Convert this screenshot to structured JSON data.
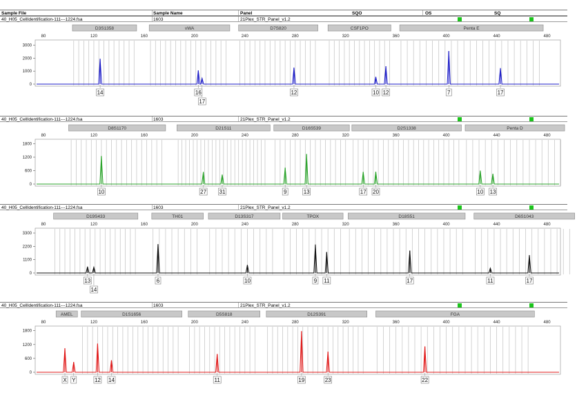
{
  "header": {
    "col_sample_file": "Sample File",
    "col_sample_name": "Sample Name",
    "col_panel": "Panel",
    "col_sqo": "SQO",
    "col_os": "OS",
    "col_sq": "SQ"
  },
  "samples": [
    {
      "file": "40_H05_CellIdentification-111---1224.fsa",
      "name": "1603",
      "panel": "21Plex_STR_Panel_v1.2"
    },
    {
      "file": "40_H05_CellIdentification-111---1224.fsa",
      "name": "1603",
      "panel": "21Plex_STR_Panel_v1.2"
    },
    {
      "file": "40_H05_CellIdentification-111---1224.fsa",
      "name": "1603",
      "panel": "21Plex_STR_Panel_v1.2"
    },
    {
      "file": "40_H05_CellIdentification-111---1224.fsa",
      "name": "1603",
      "panel": "21Plex_STR_Panel_v1.2"
    }
  ],
  "colors": {
    "blue": "#1e1ec8",
    "green": "#2aa32a",
    "black": "#111111",
    "red": "#e01818",
    "flag": "#1bc41b",
    "bin": "#c8c8c8",
    "marker_fill": "#c8c8c8"
  },
  "chart_data": [
    {
      "type": "line",
      "dye": "blue",
      "x_ticks": [
        "80",
        "120",
        "160",
        "200",
        "240",
        "280",
        "320",
        "360",
        "400",
        "440",
        "480"
      ],
      "x_range": [
        80,
        500
      ],
      "y_ticks": [
        "0",
        "1000",
        "2000",
        "3000"
      ],
      "y_range": [
        0,
        3400
      ],
      "markers": [
        {
          "name": "D3S1358",
          "start": 103,
          "end": 154
        },
        {
          "name": "vWA",
          "start": 164,
          "end": 228
        },
        {
          "name": "D7S820",
          "start": 235,
          "end": 298
        },
        {
          "name": "CSF1PO",
          "start": 306,
          "end": 356
        },
        {
          "name": "Penta E",
          "start": 363,
          "end": 477
        }
      ],
      "bins": [
        [
          104,
          152,
          4
        ],
        [
          165,
          226,
          4
        ],
        [
          236,
          296,
          4
        ],
        [
          307,
          355,
          4
        ],
        [
          364,
          476,
          5
        ]
      ],
      "peaks": [
        {
          "x": 125,
          "h": 1950,
          "label": "14",
          "row": 0
        },
        {
          "x": 203,
          "h": 1050,
          "label": "16",
          "row": 0
        },
        {
          "x": 206,
          "h": 450,
          "label": "17",
          "row": 1
        },
        {
          "x": 279,
          "h": 1270,
          "label": "12",
          "row": 0
        },
        {
          "x": 344,
          "h": 560,
          "label": "10",
          "row": 0
        },
        {
          "x": 352,
          "h": 1380,
          "label": "12",
          "row": 0
        },
        {
          "x": 402,
          "h": 2550,
          "label": "7",
          "row": 0
        },
        {
          "x": 443,
          "h": 1230,
          "label": "17",
          "row": 0
        }
      ]
    },
    {
      "type": "line",
      "dye": "green",
      "x_ticks": [
        "80",
        "120",
        "160",
        "200",
        "240",
        "280",
        "320",
        "360",
        "400",
        "440",
        "480"
      ],
      "x_range": [
        80,
        500
      ],
      "y_ticks": [
        "0",
        "600",
        "1200",
        "1800"
      ],
      "y_range": [
        0,
        2000
      ],
      "markers": [
        {
          "name": "D8S1170",
          "start": 100,
          "end": 177
        },
        {
          "name": "D21S11",
          "start": 186,
          "end": 260
        },
        {
          "name": "D16S539",
          "start": 263,
          "end": 323
        },
        {
          "name": "D2S1338",
          "start": 325,
          "end": 412
        },
        {
          "name": "Penta D",
          "start": 415,
          "end": 494
        }
      ],
      "bins": [
        [
          102,
          175,
          4
        ],
        [
          187,
          258,
          3
        ],
        [
          264,
          321,
          4
        ],
        [
          326,
          410,
          4
        ],
        [
          416,
          492,
          5
        ]
      ],
      "peaks": [
        {
          "x": 126,
          "h": 1250,
          "label": "10",
          "row": 0
        },
        {
          "x": 207,
          "h": 540,
          "label": "27",
          "row": 0
        },
        {
          "x": 222,
          "h": 420,
          "label": "31",
          "row": 0
        },
        {
          "x": 272,
          "h": 730,
          "label": "9",
          "row": 0
        },
        {
          "x": 289,
          "h": 1340,
          "label": "13",
          "row": 0
        },
        {
          "x": 334,
          "h": 540,
          "label": "17",
          "row": 0
        },
        {
          "x": 344,
          "h": 550,
          "label": "20",
          "row": 0
        },
        {
          "x": 427,
          "h": 600,
          "label": "10",
          "row": 0
        },
        {
          "x": 437,
          "h": 460,
          "label": "13",
          "row": 0
        }
      ]
    },
    {
      "type": "line",
      "dye": "black",
      "x_ticks": [
        "80",
        "120",
        "160",
        "200",
        "240",
        "280",
        "320",
        "360",
        "400",
        "440",
        "480"
      ],
      "x_range": [
        80,
        500
      ],
      "y_ticks": [
        "0",
        "1100",
        "2200",
        "3300"
      ],
      "y_range": [
        0,
        3700
      ],
      "markers": [
        {
          "name": "D19S433",
          "start": 88,
          "end": 155
        },
        {
          "name": "TH01",
          "start": 166,
          "end": 207
        },
        {
          "name": "D13S317",
          "start": 211,
          "end": 268
        },
        {
          "name": "TPOX",
          "start": 270,
          "end": 318
        },
        {
          "name": "D18S51",
          "start": 322,
          "end": 415
        },
        {
          "name": "D6S1043",
          "start": 422,
          "end": 502
        }
      ],
      "bins": [
        [
          89,
          153,
          4
        ],
        [
          167,
          205,
          5
        ],
        [
          212,
          266,
          5
        ],
        [
          271,
          316,
          5
        ],
        [
          323,
          413,
          5
        ],
        [
          423,
          500,
          5
        ]
      ],
      "peaks": [
        {
          "x": 115,
          "h": 520,
          "label": "13",
          "row": 0
        },
        {
          "x": 120,
          "h": 480,
          "label": "14",
          "row": 1
        },
        {
          "x": 171,
          "h": 2380,
          "label": "6",
          "row": 0
        },
        {
          "x": 242,
          "h": 660,
          "label": "10",
          "row": 0
        },
        {
          "x": 296,
          "h": 2350,
          "label": "9",
          "row": 0
        },
        {
          "x": 305,
          "h": 1730,
          "label": "11",
          "row": 0
        },
        {
          "x": 371,
          "h": 1850,
          "label": "17",
          "row": 0
        },
        {
          "x": 435,
          "h": 400,
          "label": "11",
          "row": 0
        },
        {
          "x": 466,
          "h": 1480,
          "label": "17",
          "row": 0
        }
      ]
    },
    {
      "type": "line",
      "dye": "red",
      "x_ticks": [
        "80",
        "120",
        "160",
        "200",
        "240",
        "280",
        "320",
        "360",
        "400",
        "440",
        "480"
      ],
      "x_range": [
        80,
        500
      ],
      "y_ticks": [
        "0",
        "600",
        "1200",
        "1800"
      ],
      "y_range": [
        0,
        2000
      ],
      "markers": [
        {
          "name": "AMEL",
          "start": 90,
          "end": 107
        },
        {
          "name": "D1S1656",
          "start": 110,
          "end": 190
        },
        {
          "name": "D5S818",
          "start": 195,
          "end": 252
        },
        {
          "name": "D12S391",
          "start": 257,
          "end": 337
        },
        {
          "name": "FGA",
          "start": 344,
          "end": 470
        }
      ],
      "bins": [
        [
          111,
          189,
          4
        ],
        [
          196,
          250,
          4
        ],
        [
          258,
          335,
          4
        ],
        [
          345,
          468,
          5
        ]
      ],
      "peaks": [
        {
          "x": 97,
          "h": 1040,
          "label": "X",
          "row": 0
        },
        {
          "x": 104,
          "h": 440,
          "label": "Y",
          "row": 0
        },
        {
          "x": 123,
          "h": 1240,
          "label": "12",
          "row": 0
        },
        {
          "x": 134,
          "h": 520,
          "label": "14",
          "row": 0
        },
        {
          "x": 218,
          "h": 790,
          "label": "11",
          "row": 0
        },
        {
          "x": 285,
          "h": 1780,
          "label": "19",
          "row": 0
        },
        {
          "x": 306,
          "h": 890,
          "label": "23",
          "row": 0
        },
        {
          "x": 383,
          "h": 1120,
          "label": "22",
          "row": 0
        }
      ]
    }
  ]
}
